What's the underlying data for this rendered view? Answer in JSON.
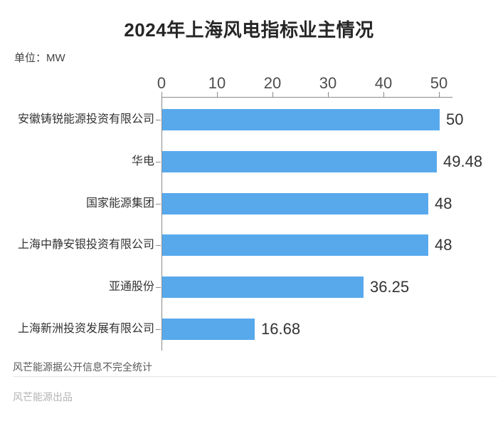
{
  "title": "2024年上海风电指标业主情况",
  "unit_label": "单位：MW",
  "footer": {
    "note": "风芒能源据公开信息不完全统计",
    "credit": "风芒能源出品"
  },
  "colors": {
    "bar": "#58a9ec",
    "axis": "#8a8a8a",
    "tick_label": "#4d4d4d",
    "category_label": "#333333",
    "value_label": "#333333",
    "note": "#595959",
    "credit": "#b3b3b3",
    "divider": "#e3e3e3"
  },
  "chart_data": {
    "type": "bar",
    "orientation": "horizontal",
    "title": "2024年上海风电指标业主情况",
    "xlabel": "",
    "ylabel": "",
    "unit": "MW",
    "categories": [
      "安徽铸锐能源投资有限公司",
      "华电",
      "国家能源集团",
      "上海中静安银投资有限公司",
      "亚通股份",
      "上海新洲投资发展有限公司"
    ],
    "values": [
      50,
      49.48,
      48,
      48,
      36.25,
      16.68
    ],
    "value_labels": [
      "50",
      "49.48",
      "48",
      "48",
      "36.25",
      "16.68"
    ],
    "xlim": [
      0,
      50
    ],
    "xticks": [
      0,
      10,
      20,
      30,
      40,
      50
    ],
    "grid": false,
    "legend": false,
    "axis_position": "top"
  }
}
